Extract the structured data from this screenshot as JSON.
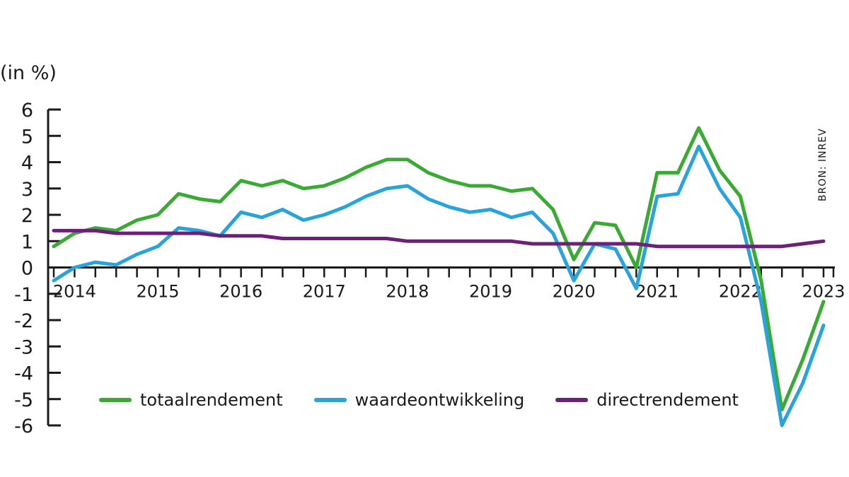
{
  "chart_data": {
    "type": "line",
    "unit_label": "(in %)",
    "source": "BRON: INREV",
    "ylim": [
      -6,
      6
    ],
    "yticks": [
      6,
      5,
      4,
      3,
      2,
      1,
      0,
      -1,
      -2,
      -3,
      -4,
      -5,
      -6
    ],
    "year_labels": [
      "2014",
      "2015",
      "2016",
      "2017",
      "2018",
      "2019",
      "2020",
      "2021",
      "2022",
      "2023"
    ],
    "x_start": "2013-Q4",
    "x_end": "2023-Q3",
    "grid": false,
    "legend_position": "bottom-left",
    "series": [
      {
        "name": "totaalrendement",
        "color": "#3aaa35",
        "values": [
          0.8,
          1.3,
          1.5,
          1.4,
          1.8,
          2.0,
          2.8,
          2.6,
          2.5,
          3.3,
          3.1,
          3.3,
          3.0,
          3.1,
          3.4,
          3.8,
          4.1,
          4.1,
          3.6,
          3.3,
          3.1,
          3.1,
          2.9,
          3.0,
          2.2,
          0.3,
          1.7,
          1.6,
          0.0,
          3.6,
          3.6,
          5.3,
          3.7,
          2.7,
          -0.5,
          -5.4,
          -3.5,
          -1.3
        ]
      },
      {
        "name": "waardeontwikkeling",
        "color": "#29a3dc",
        "values": [
          -0.5,
          0.0,
          0.2,
          0.1,
          0.5,
          0.8,
          1.5,
          1.4,
          1.2,
          2.1,
          1.9,
          2.2,
          1.8,
          2.0,
          2.3,
          2.7,
          3.0,
          3.1,
          2.6,
          2.3,
          2.1,
          2.2,
          1.9,
          2.1,
          1.3,
          -0.5,
          0.9,
          0.7,
          -0.8,
          2.7,
          2.8,
          4.6,
          3.0,
          1.9,
          -1.3,
          -6.0,
          -4.4,
          -2.2
        ]
      },
      {
        "name": "directrendement",
        "color": "#6d2077",
        "values": [
          1.4,
          1.4,
          1.4,
          1.3,
          1.3,
          1.3,
          1.3,
          1.3,
          1.2,
          1.2,
          1.2,
          1.1,
          1.1,
          1.1,
          1.1,
          1.1,
          1.1,
          1.0,
          1.0,
          1.0,
          1.0,
          1.0,
          1.0,
          0.9,
          0.9,
          0.9,
          0.9,
          0.9,
          0.9,
          0.8,
          0.8,
          0.8,
          0.8,
          0.8,
          0.8,
          0.8,
          0.9,
          1.0
        ]
      }
    ]
  }
}
